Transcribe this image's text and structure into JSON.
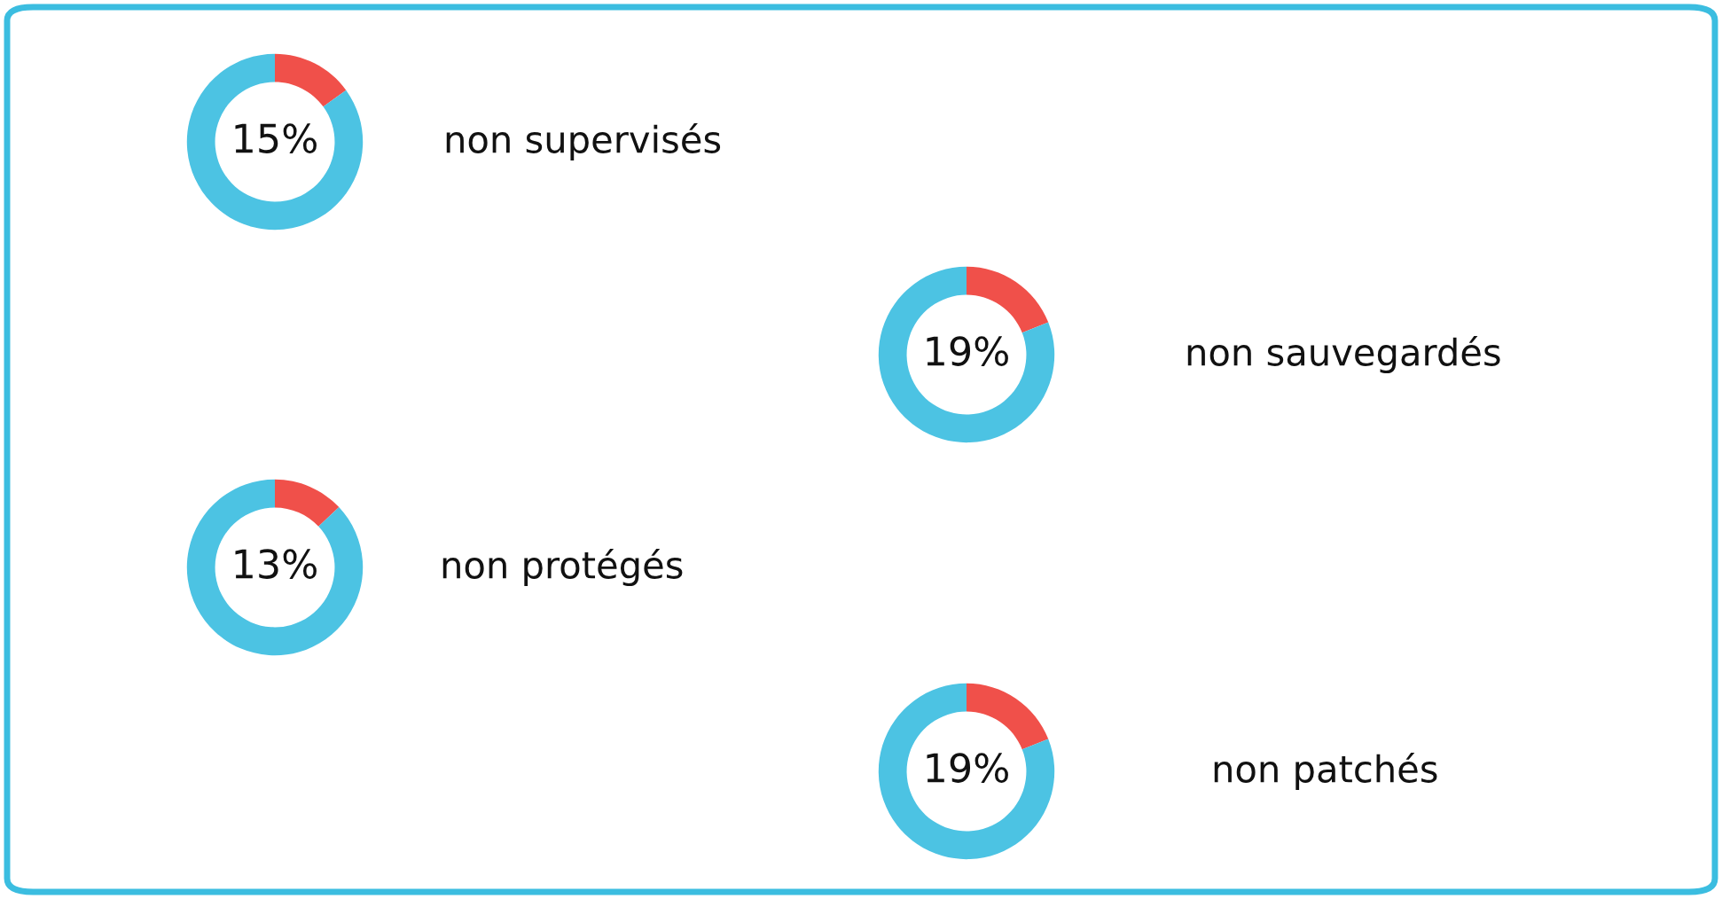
{
  "chart_data": [
    {
      "type": "donut",
      "title": "non supervisés",
      "categories": [
        null,
        null
      ],
      "values": [
        15,
        85
      ],
      "colors": [
        "#f0504a",
        "#4cc3e3"
      ],
      "value_labels": [
        "15%",
        null
      ]
    },
    {
      "type": "donut",
      "title": "non sauvegardés",
      "categories": [
        null,
        null
      ],
      "values": [
        19,
        81
      ],
      "colors": [
        "#f0504a",
        "#4cc3e3"
      ],
      "value_labels": [
        "19%",
        null
      ]
    },
    {
      "type": "donut",
      "title": "non protégés",
      "categories": [
        null,
        null
      ],
      "values": [
        13,
        87
      ],
      "colors": [
        "#f0504a",
        "#4cc3e3"
      ],
      "value_labels": [
        "13%",
        null
      ]
    },
    {
      "type": "donut",
      "title": "non patchés",
      "categories": [
        null,
        null
      ],
      "values": [
        19,
        81
      ],
      "colors": [
        "#f0504a",
        "#4cc3e3"
      ],
      "value_labels": [
        "19%",
        null
      ]
    }
  ]
}
